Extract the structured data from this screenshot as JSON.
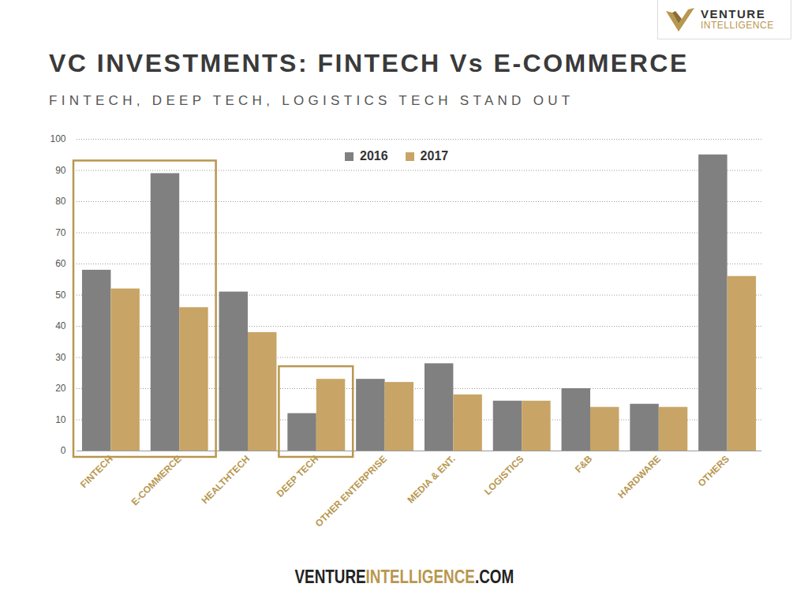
{
  "chart_data": {
    "type": "bar",
    "title": "VC INVESTMENTS: FINTECH Vs E-COMMERCE",
    "subtitle": "FINTECH, DEEP TECH, LOGISTICS TECH STAND OUT",
    "categories": [
      "FINTECH",
      "E-COMMERCE",
      "HEALTHTECH",
      "DEEP TECH",
      "OTHER ENTERPRISE",
      "MEDIA & ENT.",
      "LOGISTICS",
      "F&B",
      "HARDWARE",
      "OTHERS"
    ],
    "series": [
      {
        "name": "2016",
        "color": "#808080",
        "values": [
          58,
          89,
          51,
          12,
          23,
          28,
          16,
          20,
          15,
          95
        ]
      },
      {
        "name": "2017",
        "color": "#c8a566",
        "values": [
          52,
          46,
          38,
          23,
          22,
          18,
          16,
          14,
          14,
          56
        ]
      }
    ],
    "ylim": [
      0,
      100
    ],
    "yticks": [
      0,
      10,
      20,
      30,
      40,
      50,
      60,
      70,
      80,
      90,
      100
    ],
    "grid": true,
    "legend": "top"
  },
  "logo": [
    "VENTURE",
    "INTELLIGENCE"
  ],
  "footer": [
    "VENTURE",
    "INTELLIGENCE",
    ".COM"
  ]
}
